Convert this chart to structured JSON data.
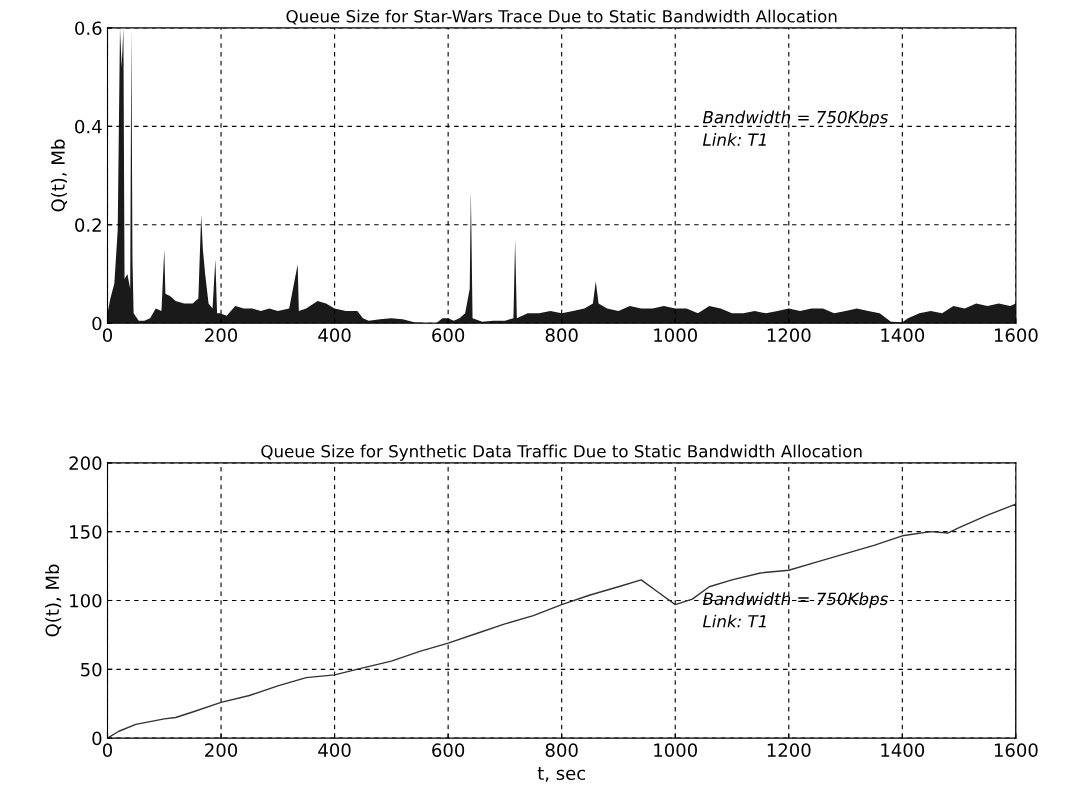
{
  "chart_data": [
    {
      "type": "area",
      "title": "Queue Size for Star-Wars Trace Due to Static Bandwidth Allocation",
      "ylabel": "Q(t), Mb",
      "x": [
        0,
        5,
        12,
        18,
        22,
        25,
        28,
        30,
        35,
        40,
        42,
        44,
        46,
        55,
        65,
        75,
        85,
        95,
        100,
        102,
        110,
        120,
        135,
        150,
        160,
        165,
        168,
        172,
        178,
        185,
        190,
        193,
        198,
        210,
        225,
        240,
        255,
        270,
        285,
        300,
        320,
        335,
        337,
        350,
        370,
        385,
        400,
        420,
        440,
        450,
        460,
        480,
        500,
        520,
        540,
        560,
        580,
        590,
        600,
        610,
        620,
        630,
        638,
        640,
        643,
        660,
        680,
        700,
        715,
        718,
        721,
        740,
        760,
        780,
        800,
        820,
        840,
        855,
        860,
        865,
        880,
        900,
        920,
        940,
        960,
        980,
        1000,
        1020,
        1040,
        1060,
        1080,
        1100,
        1120,
        1140,
        1160,
        1180,
        1200,
        1220,
        1240,
        1260,
        1280,
        1300,
        1320,
        1340,
        1360,
        1380,
        1400,
        1410,
        1430,
        1450,
        1470,
        1490,
        1510,
        1530,
        1550,
        1570,
        1590,
        1600
      ],
      "series": [
        {
          "color": "#1a1a1a",
          "values": [
            0.02,
            0.05,
            0.08,
            0.19,
            0.6,
            0.52,
            0.6,
            0.09,
            0.1,
            0.07,
            0.6,
            0.13,
            0.02,
            0.005,
            0.005,
            0.01,
            0.03,
            0.025,
            0.15,
            0.06,
            0.055,
            0.045,
            0.04,
            0.04,
            0.05,
            0.22,
            0.15,
            0.1,
            0.04,
            0.03,
            0.13,
            0.02,
            0.02,
            0.015,
            0.035,
            0.03,
            0.03,
            0.025,
            0.03,
            0.025,
            0.03,
            0.12,
            0.025,
            0.03,
            0.045,
            0.04,
            0.03,
            0.025,
            0.025,
            0.01,
            0.005,
            0.008,
            0.01,
            0.008,
            0.002,
            0.001,
            0.001,
            0.01,
            0.01,
            0.005,
            0.01,
            0.02,
            0.07,
            0.27,
            0.01,
            0.003,
            0.005,
            0.005,
            0.01,
            0.17,
            0.01,
            0.02,
            0.02,
            0.025,
            0.02,
            0.025,
            0.03,
            0.04,
            0.085,
            0.04,
            0.03,
            0.025,
            0.035,
            0.03,
            0.03,
            0.035,
            0.03,
            0.03,
            0.02,
            0.035,
            0.03,
            0.02,
            0.02,
            0.025,
            0.02,
            0.025,
            0.03,
            0.025,
            0.03,
            0.03,
            0.02,
            0.025,
            0.03,
            0.025,
            0.02,
            0.003,
            0.002,
            0.01,
            0.02,
            0.025,
            0.02,
            0.035,
            0.03,
            0.04,
            0.035,
            0.04,
            0.035,
            0.04
          ]
        }
      ],
      "xlim": [
        0,
        1600
      ],
      "xticks": [
        0,
        200,
        400,
        600,
        800,
        1000,
        1200,
        1400,
        1600
      ],
      "ylim": [
        0,
        0.6
      ],
      "yticks": [
        0,
        0.2,
        0.4,
        0.6
      ],
      "grid": true,
      "annotations": [
        "Bandwidth = 750Kbps\nLink: T1"
      ]
    },
    {
      "type": "line",
      "title": "Queue Size for Synthetic Data Traffic Due to Static Bandwidth Allocation",
      "xlabel": "t, sec",
      "ylabel": "Q(t), Mb",
      "x": [
        0,
        20,
        50,
        100,
        120,
        150,
        200,
        250,
        300,
        350,
        400,
        450,
        500,
        550,
        600,
        650,
        700,
        750,
        800,
        850,
        900,
        940,
        970,
        1000,
        1030,
        1060,
        1100,
        1150,
        1200,
        1250,
        1300,
        1350,
        1400,
        1450,
        1480,
        1500,
        1550,
        1600,
        1600
      ],
      "series": [
        {
          "color": "#333333",
          "values": [
            0,
            5,
            10,
            14,
            15,
            19,
            26,
            31,
            38,
            44,
            46,
            51,
            56,
            63,
            69,
            76,
            83,
            89,
            97,
            104,
            110,
            115,
            106,
            97,
            101,
            110,
            115,
            120,
            122,
            128,
            134,
            140,
            147,
            150,
            149,
            153,
            162,
            170,
            0
          ]
        }
      ],
      "xlim": [
        0,
        1600
      ],
      "xticks": [
        0,
        200,
        400,
        600,
        800,
        1000,
        1200,
        1400,
        1600
      ],
      "ylim": [
        0,
        200
      ],
      "yticks": [
        0,
        50,
        100,
        150,
        200
      ],
      "grid": true,
      "annotations": [
        "Bandwidth = 750Kbps\nLink: T1"
      ]
    }
  ]
}
